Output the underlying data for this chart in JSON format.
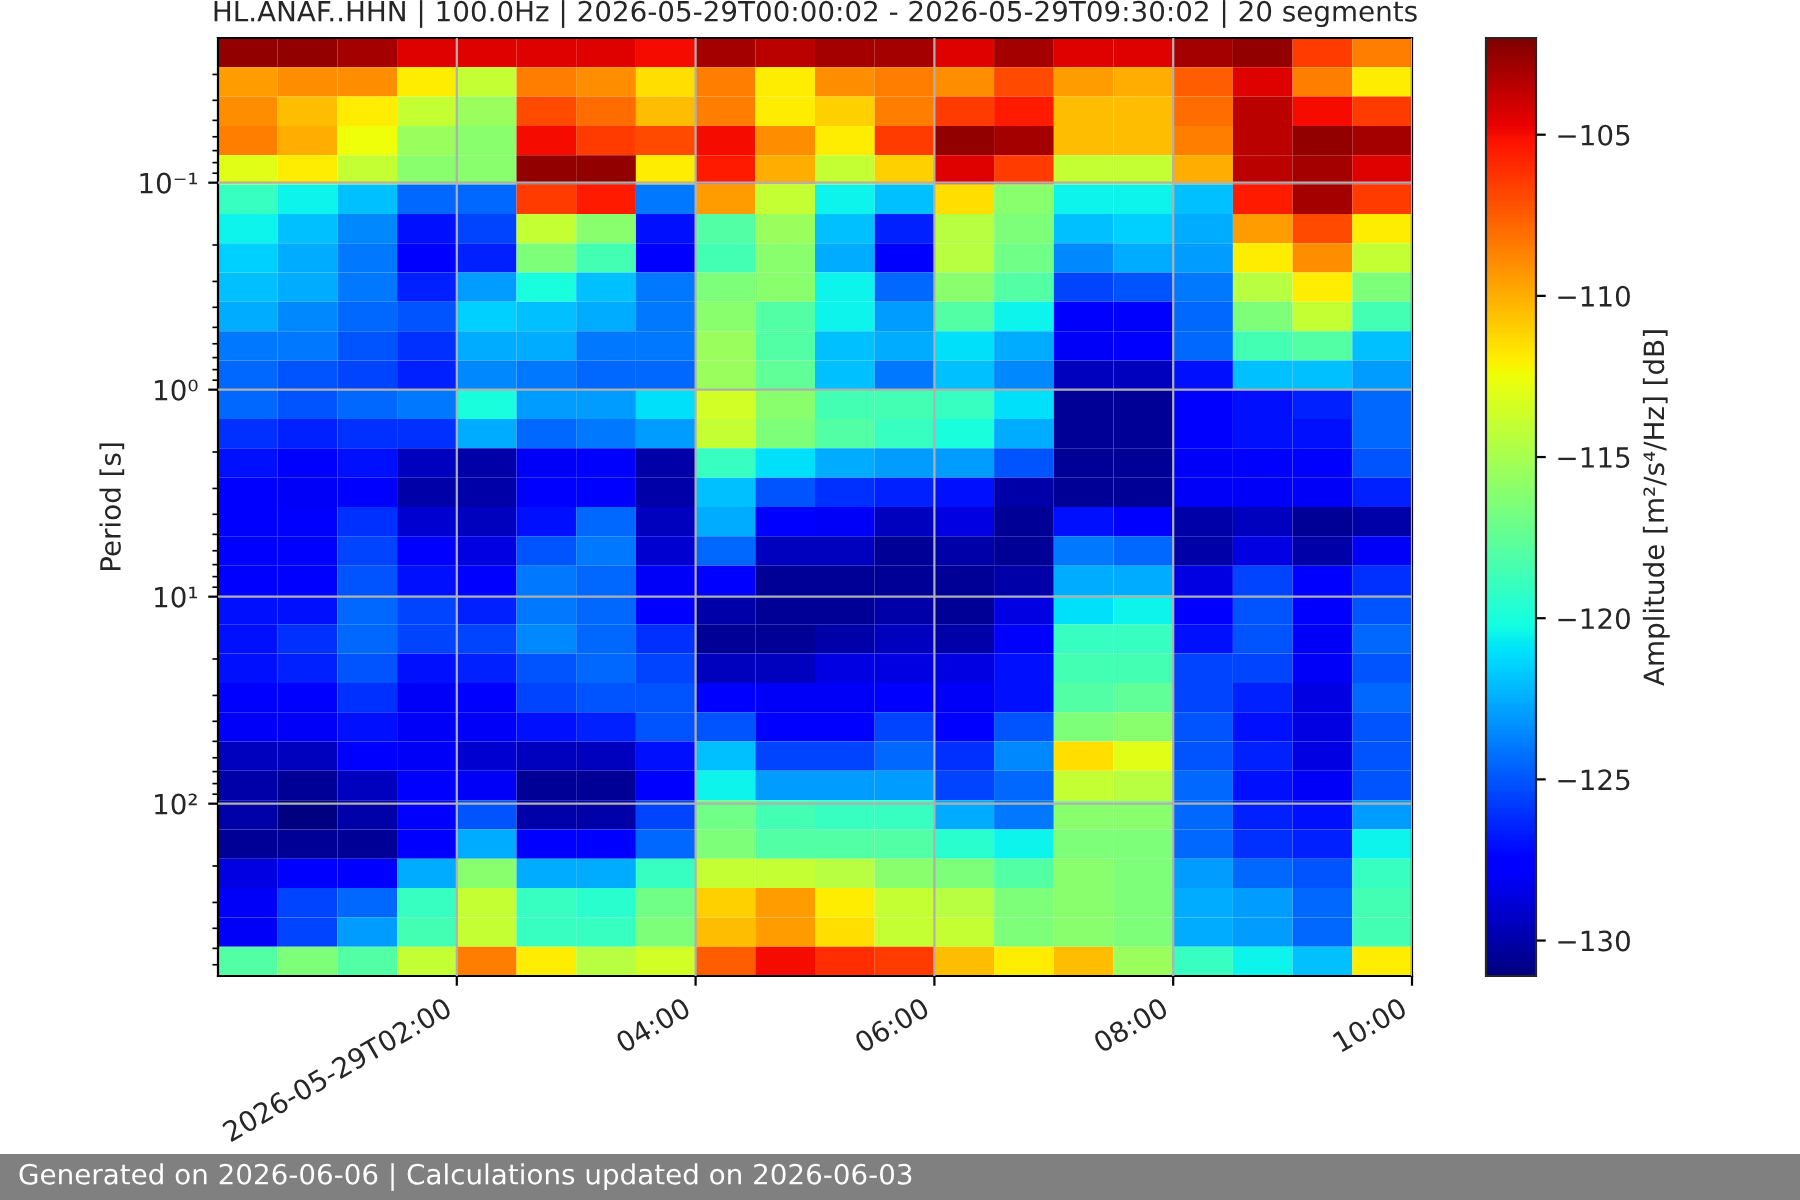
{
  "chart_data": {
    "type": "heatmap",
    "title": "HL.ANAF..HHN | 100.0Hz | 2026-05-29T00:00:02 - 2026-05-29T09:30:02 | 20 segments",
    "ylabel": "Period [s]",
    "clabel": "Amplitude [m²/s⁴/Hz] [dB]",
    "annotations": [
      "Generated on 2026-06-06 | Calculations updated on 2026-06-03"
    ],
    "x": [
      "2026-05-29T00:15",
      "2026-05-29T00:45",
      "2026-05-29T01:15",
      "2026-05-29T01:45",
      "2026-05-29T02:15",
      "2026-05-29T02:45",
      "2026-05-29T03:15",
      "2026-05-29T03:45",
      "2026-05-29T04:15",
      "2026-05-29T04:45",
      "2026-05-29T05:15",
      "2026-05-29T05:45",
      "2026-05-29T06:15",
      "2026-05-29T06:45",
      "2026-05-29T07:15",
      "2026-05-29T07:45",
      "2026-05-29T08:15",
      "2026-05-29T08:45",
      "2026-05-29T09:15",
      "2026-05-29T09:45"
    ],
    "xlim": [
      "2026-05-29T00:00",
      "2026-05-29T10:00"
    ],
    "xticks": [
      {
        "value": "2026-05-29T02:00",
        "label": "2026-05-29T02:00"
      },
      {
        "value": "2026-05-29T04:00",
        "label": "04:00"
      },
      {
        "value": "2026-05-29T06:00",
        "label": "06:00"
      },
      {
        "value": "2026-05-29T08:00",
        "label": "08:00"
      },
      {
        "value": "2026-05-29T10:00",
        "label": "10:00"
      }
    ],
    "log": "y",
    "ylim": [
      680,
      0.02
    ],
    "yticks": [
      {
        "value": 0.1,
        "label": "10⁻¹"
      },
      {
        "value": 1,
        "label": "10⁰"
      },
      {
        "value": 10,
        "label": "10¹"
      },
      {
        "value": 100,
        "label": "10²"
      },
      {
        "value": 0.03,
        "label": null
      },
      {
        "value": 0.04,
        "label": null
      },
      {
        "value": 0.05,
        "label": null
      },
      {
        "value": 0.06,
        "label": null
      },
      {
        "value": 0.07,
        "label": null
      },
      {
        "value": 0.08,
        "label": null
      },
      {
        "value": 0.09,
        "label": null
      },
      {
        "value": 0.2,
        "label": null
      },
      {
        "value": 0.3,
        "label": null
      },
      {
        "value": 0.4,
        "label": null
      },
      {
        "value": 0.5,
        "label": null
      },
      {
        "value": 0.6,
        "label": null
      },
      {
        "value": 0.7,
        "label": null
      },
      {
        "value": 0.8,
        "label": null
      },
      {
        "value": 0.9,
        "label": null
      },
      {
        "value": 2,
        "label": null
      },
      {
        "value": 3,
        "label": null
      },
      {
        "value": 4,
        "label": null
      },
      {
        "value": 5,
        "label": null
      },
      {
        "value": 6,
        "label": null
      },
      {
        "value": 7,
        "label": null
      },
      {
        "value": 8,
        "label": null
      },
      {
        "value": 9,
        "label": null
      },
      {
        "value": 20,
        "label": null
      },
      {
        "value": 30,
        "label": null
      },
      {
        "value": 40,
        "label": null
      },
      {
        "value": 50,
        "label": null
      },
      {
        "value": 60,
        "label": null
      },
      {
        "value": 70,
        "label": null
      },
      {
        "value": 80,
        "label": null
      },
      {
        "value": 90,
        "label": null
      },
      {
        "value": 200,
        "label": null
      },
      {
        "value": 300,
        "label": null
      },
      {
        "value": 400,
        "label": null
      },
      {
        "value": 500,
        "label": null
      },
      {
        "value": 600,
        "label": null
      }
    ],
    "grid": true,
    "clim": [
      -131.1,
      -102
    ],
    "cticks": [
      -130,
      -125,
      -120,
      -115,
      -110,
      -105
    ],
    "cells": [
      [
        -102.5,
        -102.5,
        -103,
        -104.5,
        -104.5,
        -104.5,
        -104.5,
        -105,
        -103,
        -103.5,
        -103,
        -103,
        -104.5,
        -103,
        -104.5,
        -104.5,
        -103,
        -102.5,
        -106.5,
        -108.5
      ],
      [
        -109.5,
        -109,
        -109,
        -112,
        -114,
        -108.5,
        -109,
        -111.5,
        -108.5,
        -112,
        -109,
        -108.5,
        -109,
        -107,
        -109.5,
        -110,
        -107.5,
        -104.5,
        -108.5,
        -112
      ],
      [
        -109,
        -110.5,
        -112,
        -114,
        -115.5,
        -107,
        -108,
        -110.5,
        -108.5,
        -112,
        -111,
        -108.5,
        -106.5,
        -105.5,
        -110.5,
        -110.5,
        -108,
        -103.5,
        -105,
        -106.5
      ],
      [
        -108.5,
        -110,
        -112.5,
        -115.5,
        -116,
        -105,
        -106.5,
        -107,
        -105,
        -109,
        -112,
        -106.5,
        -102.5,
        -103,
        -110.5,
        -110.5,
        -108.5,
        -103.5,
        -102.5,
        -103
      ],
      [
        -113,
        -112,
        -114,
        -116,
        -116,
        -102.5,
        -102.5,
        -112,
        -105.5,
        -110,
        -114,
        -111,
        -104.5,
        -106.5,
        -114,
        -114,
        -110,
        -103.5,
        -103,
        -104.5
      ],
      [
        -119,
        -120.5,
        -122,
        -124.5,
        -124.5,
        -106.5,
        -105.5,
        -124,
        -109.5,
        -114,
        -120.5,
        -122,
        -111.5,
        -116,
        -120.5,
        -120.5,
        -122,
        -105.5,
        -103,
        -106.5
      ],
      [
        -120.5,
        -122,
        -123.5,
        -127,
        -125.5,
        -114,
        -116,
        -127,
        -118,
        -115.5,
        -122,
        -126.5,
        -114.5,
        -116.5,
        -122,
        -121.5,
        -122.5,
        -109.5,
        -107,
        -112
      ],
      [
        -121.5,
        -122.5,
        -124,
        -127.5,
        -126.5,
        -116.5,
        -118.5,
        -127.5,
        -118.5,
        -116,
        -122.5,
        -127.5,
        -114.5,
        -117,
        -123.5,
        -122.5,
        -123,
        -112,
        -109,
        -114
      ],
      [
        -122,
        -122.5,
        -124,
        -126.5,
        -123,
        -120,
        -122,
        -124,
        -116.5,
        -116,
        -120.5,
        -124.5,
        -116,
        -118,
        -125.5,
        -125,
        -124,
        -114.5,
        -112,
        -116.5
      ],
      [
        -122.5,
        -123.5,
        -124.5,
        -125,
        -121.5,
        -122,
        -122.5,
        -124,
        -116,
        -118,
        -120.5,
        -123,
        -118,
        -120.5,
        -127.5,
        -127.5,
        -124.5,
        -116.5,
        -114,
        -118.5
      ],
      [
        -124,
        -124,
        -125,
        -126,
        -122.5,
        -122.5,
        -124,
        -124,
        -115.5,
        -118,
        -122,
        -122.5,
        -121,
        -122.5,
        -128,
        -127.5,
        -124.5,
        -118.5,
        -118,
        -122
      ],
      [
        -124.5,
        -125,
        -125.5,
        -126.5,
        -123.5,
        -124,
        -124.5,
        -124.5,
        -115.5,
        -117.5,
        -122,
        -124,
        -122,
        -123.5,
        -129.5,
        -129.5,
        -127,
        -122,
        -122,
        -123
      ],
      [
        -124.5,
        -125,
        -124.5,
        -124,
        -120,
        -123,
        -123,
        -121,
        -113.5,
        -116,
        -118.5,
        -118.5,
        -119,
        -121,
        -130.5,
        -130.5,
        -127.5,
        -127,
        -126.5,
        -124.5
      ],
      [
        -126,
        -126.5,
        -126,
        -126,
        -122.5,
        -124.5,
        -124,
        -123,
        -114,
        -116.5,
        -118,
        -119,
        -120,
        -122.5,
        -130.5,
        -130.5,
        -127.5,
        -127,
        -127,
        -124.5
      ],
      [
        -127,
        -127.5,
        -127,
        -129.5,
        -130,
        -128,
        -127.5,
        -130,
        -119,
        -121,
        -122.5,
        -123,
        -123,
        -125,
        -130.5,
        -130.5,
        -128,
        -127.5,
        -127.5,
        -125
      ],
      [
        -127.5,
        -128,
        -127.5,
        -130,
        -130,
        -127.5,
        -127.5,
        -130,
        -122,
        -125,
        -126,
        -126.5,
        -127,
        -130,
        -130.5,
        -130.5,
        -128,
        -128,
        -128,
        -126.5
      ],
      [
        -127.5,
        -127.5,
        -126,
        -129,
        -129.5,
        -127,
        -124.5,
        -129.5,
        -122.5,
        -127.5,
        -128,
        -129.5,
        -128.5,
        -130.5,
        -127,
        -127.5,
        -130,
        -129.5,
        -130.5,
        -130
      ],
      [
        -127.5,
        -127.5,
        -125.5,
        -127.5,
        -128.5,
        -125,
        -124,
        -129,
        -124.5,
        -129.5,
        -129.5,
        -130.5,
        -130,
        -130.5,
        -124,
        -124.5,
        -130,
        -128.5,
        -130,
        -128
      ],
      [
        -127.5,
        -127.5,
        -125,
        -127,
        -127.5,
        -124,
        -124.5,
        -128,
        -127.5,
        -130.5,
        -130.5,
        -130.5,
        -130.5,
        -130,
        -122.5,
        -122.5,
        -128.5,
        -125.5,
        -127.5,
        -126
      ],
      [
        -127,
        -127,
        -124.5,
        -125.5,
        -126.5,
        -124,
        -124.5,
        -127.5,
        -130,
        -130.5,
        -130.5,
        -130,
        -130.5,
        -128.5,
        -121,
        -120.5,
        -127.5,
        -125,
        -127.5,
        -125
      ],
      [
        -127,
        -126,
        -124.5,
        -125.5,
        -125.5,
        -123.5,
        -124.5,
        -126,
        -130.5,
        -130.5,
        -130,
        -129.5,
        -130,
        -127.5,
        -119,
        -119,
        -127,
        -125,
        -128,
        -124.5
      ],
      [
        -127,
        -126.5,
        -125,
        -127,
        -126.5,
        -125,
        -124.5,
        -125.5,
        -129.5,
        -129.5,
        -128.5,
        -128.5,
        -128.5,
        -127,
        -118.5,
        -118.5,
        -125.5,
        -125.5,
        -128,
        -125
      ],
      [
        -127.5,
        -127.5,
        -126,
        -128,
        -127.5,
        -125.5,
        -125,
        -125,
        -127.5,
        -128,
        -128,
        -127.5,
        -128,
        -127,
        -118,
        -117.5,
        -125.5,
        -126.5,
        -128.5,
        -124.5
      ],
      [
        -128,
        -128,
        -127,
        -128,
        -128,
        -127,
        -126.5,
        -125,
        -125,
        -127.5,
        -127.5,
        -125.5,
        -127.5,
        -125,
        -116.5,
        -116,
        -125,
        -127,
        -128.5,
        -125
      ],
      [
        -129.5,
        -129.5,
        -127.5,
        -128,
        -129,
        -129.5,
        -129.5,
        -127,
        -122,
        -125.5,
        -125.5,
        -124.5,
        -126,
        -123.5,
        -111.5,
        -113,
        -125,
        -126.5,
        -128.5,
        -125
      ],
      [
        -130,
        -130.5,
        -129.5,
        -127.5,
        -128,
        -130.5,
        -130.5,
        -127.5,
        -120.5,
        -123,
        -123,
        -123,
        -125.5,
        -124.5,
        -114,
        -114.5,
        -124.5,
        -127,
        -128,
        -125
      ],
      [
        -130,
        -131,
        -130,
        -127.5,
        -125,
        -130,
        -130,
        -125.5,
        -117,
        -118.5,
        -119,
        -119,
        -122.5,
        -124,
        -116,
        -116,
        -124.5,
        -126.5,
        -127,
        -123
      ],
      [
        -130.5,
        -130.5,
        -130.5,
        -127.5,
        -122.5,
        -127.5,
        -127.5,
        -124.5,
        -116.5,
        -118,
        -118,
        -118,
        -119.5,
        -120.5,
        -116.5,
        -116.5,
        -124.5,
        -126,
        -126.5,
        -120.5
      ],
      [
        -128.5,
        -127.5,
        -127.5,
        -122.5,
        -116,
        -122.5,
        -122.5,
        -119,
        -114,
        -114,
        -114.5,
        -116,
        -116.5,
        -118,
        -116,
        -116.5,
        -123,
        -124.5,
        -125,
        -119
      ],
      [
        -128,
        -125.5,
        -124.5,
        -119,
        -114,
        -119,
        -119.5,
        -117,
        -111,
        -109.5,
        -112,
        -114,
        -114.5,
        -116.5,
        -116,
        -116.5,
        -122.5,
        -123,
        -124.5,
        -118.5
      ],
      [
        -128,
        -125.5,
        -123,
        -118.5,
        -114,
        -119,
        -119,
        -116.5,
        -110.5,
        -109.5,
        -111.5,
        -114,
        -114,
        -116.5,
        -116,
        -116.5,
        -122.5,
        -123,
        -124.5,
        -118.5
      ],
      [
        -118,
        -116.5,
        -118,
        -114,
        -108.5,
        -112,
        -114.5,
        -113.5,
        -107.5,
        -105,
        -106,
        -106.5,
        -110.5,
        -112,
        -110.5,
        -115.5,
        -119,
        -120.5,
        -122,
        -112
      ]
    ]
  }
}
